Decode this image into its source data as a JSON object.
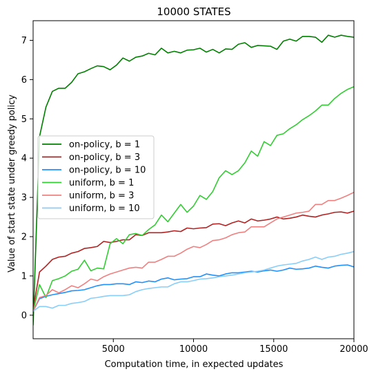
{
  "chart_data": {
    "type": "line",
    "title": "10000 STATES",
    "xlabel": "Computation time, in expected updates",
    "ylabel": "Value of start state under greedy policy",
    "xlim": [
      0,
      20000
    ],
    "ylim": [
      -0.6,
      7.5
    ],
    "xticks": [
      5000,
      10000,
      15000,
      20000
    ],
    "yticks": [
      0,
      1,
      2,
      3,
      4,
      5,
      6,
      7
    ],
    "grid": false,
    "legend_position": "center-left",
    "series": [
      {
        "name": "on-policy, b = 1",
        "color": "#008000",
        "x": [
          0,
          400,
          800,
          1200,
          1600,
          2000,
          2400,
          2800,
          3200,
          3600,
          4000,
          4400,
          4800,
          5200,
          5600,
          6000,
          6400,
          6800,
          7200,
          7600,
          8000,
          8400,
          8800,
          9200,
          9600,
          10000,
          10400,
          10800,
          11200,
          11600,
          12000,
          12400,
          12800,
          13200,
          13600,
          14000,
          14400,
          14800,
          15200,
          15600,
          16000,
          16400,
          16800,
          17200,
          17600,
          18000,
          18400,
          18800,
          19200,
          19600,
          20000
        ],
        "values": [
          -0.25,
          4.55,
          5.3,
          5.7,
          5.78,
          5.78,
          5.93,
          6.15,
          6.2,
          6.28,
          6.35,
          6.33,
          6.25,
          6.37,
          6.55,
          6.47,
          6.57,
          6.6,
          6.67,
          6.63,
          6.8,
          6.68,
          6.72,
          6.68,
          6.75,
          6.76,
          6.8,
          6.7,
          6.77,
          6.68,
          6.78,
          6.77,
          6.9,
          6.94,
          6.82,
          6.87,
          6.86,
          6.85,
          6.77,
          6.98,
          7.03,
          6.98,
          7.1,
          7.1,
          7.08,
          6.95,
          7.13,
          7.08,
          7.13,
          7.1,
          7.08
        ]
      },
      {
        "name": "on-policy, b = 3",
        "color": "#B22222",
        "x": [
          0,
          400,
          800,
          1200,
          1600,
          2000,
          2400,
          2800,
          3200,
          3600,
          4000,
          4400,
          4800,
          5200,
          5600,
          6000,
          6400,
          6800,
          7200,
          7600,
          8000,
          8400,
          8800,
          9200,
          9600,
          10000,
          10400,
          10800,
          11200,
          11600,
          12000,
          12400,
          12800,
          13200,
          13600,
          14000,
          14400,
          14800,
          15200,
          15600,
          16000,
          16400,
          16800,
          17200,
          17600,
          18000,
          18400,
          18800,
          19200,
          19600,
          20000
        ],
        "values": [
          0.15,
          1.1,
          1.25,
          1.42,
          1.48,
          1.5,
          1.58,
          1.62,
          1.7,
          1.72,
          1.75,
          1.88,
          1.85,
          1.88,
          1.92,
          1.92,
          2.05,
          2.03,
          2.1,
          2.1,
          2.1,
          2.12,
          2.15,
          2.13,
          2.22,
          2.2,
          2.22,
          2.23,
          2.32,
          2.33,
          2.28,
          2.35,
          2.4,
          2.35,
          2.45,
          2.4,
          2.42,
          2.45,
          2.5,
          2.45,
          2.47,
          2.5,
          2.55,
          2.52,
          2.5,
          2.55,
          2.58,
          2.62,
          2.63,
          2.6,
          2.65
        ]
      },
      {
        "name": "on-policy, b = 10",
        "color": "#1E90FF",
        "x": [
          0,
          400,
          800,
          1200,
          1600,
          2000,
          2400,
          2800,
          3200,
          3600,
          4000,
          4400,
          4800,
          5200,
          5600,
          6000,
          6400,
          6800,
          7200,
          7600,
          8000,
          8400,
          8800,
          9200,
          9600,
          10000,
          10400,
          10800,
          11200,
          11600,
          12000,
          12400,
          12800,
          13200,
          13600,
          14000,
          14400,
          14800,
          15200,
          15600,
          16000,
          16400,
          16800,
          17200,
          17600,
          18000,
          18400,
          18800,
          19200,
          19600,
          20000
        ],
        "values": [
          0.1,
          0.42,
          0.48,
          0.52,
          0.55,
          0.58,
          0.62,
          0.63,
          0.65,
          0.7,
          0.75,
          0.78,
          0.78,
          0.8,
          0.8,
          0.78,
          0.85,
          0.83,
          0.87,
          0.85,
          0.92,
          0.95,
          0.9,
          0.92,
          0.93,
          0.98,
          0.98,
          1.05,
          1.02,
          1.0,
          1.05,
          1.08,
          1.08,
          1.1,
          1.12,
          1.1,
          1.13,
          1.15,
          1.12,
          1.15,
          1.2,
          1.17,
          1.18,
          1.2,
          1.25,
          1.22,
          1.2,
          1.25,
          1.27,
          1.28,
          1.23
        ]
      },
      {
        "name": "uniform, b = 1",
        "color": "#32CD32",
        "x": [
          0,
          400,
          800,
          1200,
          1600,
          2000,
          2400,
          2800,
          3200,
          3600,
          4000,
          4400,
          4800,
          5200,
          5600,
          6000,
          6400,
          6800,
          7200,
          7600,
          8000,
          8400,
          8800,
          9200,
          9600,
          10000,
          10400,
          10800,
          11200,
          11600,
          12000,
          12400,
          12800,
          13200,
          13600,
          14000,
          14400,
          14800,
          15200,
          15600,
          16000,
          16400,
          16800,
          17200,
          17600,
          18000,
          18400,
          18800,
          19200,
          19600,
          20000
        ],
        "values": [
          0.1,
          0.78,
          0.45,
          0.88,
          0.93,
          1.0,
          1.12,
          1.17,
          1.4,
          1.13,
          1.2,
          1.18,
          1.82,
          1.95,
          1.82,
          2.05,
          2.08,
          2.03,
          2.18,
          2.3,
          2.55,
          2.38,
          2.6,
          2.82,
          2.62,
          2.78,
          3.05,
          2.95,
          3.15,
          3.5,
          3.68,
          3.58,
          3.68,
          3.88,
          4.18,
          4.05,
          4.42,
          4.32,
          4.58,
          4.62,
          4.75,
          4.85,
          4.98,
          5.08,
          5.2,
          5.35,
          5.35,
          5.52,
          5.65,
          5.75,
          5.82
        ]
      },
      {
        "name": "uniform, b = 3",
        "color": "#F08080",
        "x": [
          0,
          400,
          800,
          1200,
          1600,
          2000,
          2400,
          2800,
          3200,
          3600,
          4000,
          4400,
          4800,
          5200,
          5600,
          6000,
          6400,
          6800,
          7200,
          7600,
          8000,
          8400,
          8800,
          9200,
          9600,
          10000,
          10400,
          10800,
          11200,
          11600,
          12000,
          12400,
          12800,
          13200,
          13600,
          14000,
          14400,
          14800,
          15200,
          15600,
          16000,
          16400,
          16800,
          17200,
          17600,
          18000,
          18400,
          18800,
          19200,
          19600,
          20000
        ],
        "values": [
          0.1,
          0.45,
          0.5,
          0.65,
          0.57,
          0.65,
          0.75,
          0.7,
          0.8,
          0.92,
          0.88,
          0.98,
          1.05,
          1.1,
          1.15,
          1.2,
          1.22,
          1.2,
          1.35,
          1.35,
          1.42,
          1.5,
          1.5,
          1.58,
          1.68,
          1.75,
          1.72,
          1.8,
          1.9,
          1.92,
          1.97,
          2.05,
          2.1,
          2.12,
          2.25,
          2.25,
          2.25,
          2.35,
          2.45,
          2.5,
          2.55,
          2.6,
          2.62,
          2.65,
          2.82,
          2.82,
          2.92,
          2.92,
          2.98,
          3.05,
          3.13
        ]
      },
      {
        "name": "uniform, b = 10",
        "color": "#87CEFA",
        "x": [
          0,
          400,
          800,
          1200,
          1600,
          2000,
          2400,
          2800,
          3200,
          3600,
          4000,
          4400,
          4800,
          5200,
          5600,
          6000,
          6400,
          6800,
          7200,
          7600,
          8000,
          8400,
          8800,
          9200,
          9600,
          10000,
          10400,
          10800,
          11200,
          11600,
          12000,
          12400,
          12800,
          13200,
          13600,
          14000,
          14400,
          14800,
          15200,
          15600,
          16000,
          16400,
          16800,
          17200,
          17600,
          18000,
          18400,
          18800,
          19200,
          19600,
          20000
        ],
        "values": [
          0.1,
          0.22,
          0.22,
          0.18,
          0.25,
          0.25,
          0.3,
          0.32,
          0.35,
          0.43,
          0.45,
          0.48,
          0.5,
          0.5,
          0.5,
          0.52,
          0.6,
          0.65,
          0.68,
          0.7,
          0.72,
          0.72,
          0.8,
          0.85,
          0.85,
          0.88,
          0.92,
          0.93,
          0.95,
          0.98,
          1.0,
          1.02,
          1.05,
          1.08,
          1.1,
          1.12,
          1.15,
          1.2,
          1.25,
          1.28,
          1.3,
          1.32,
          1.38,
          1.42,
          1.48,
          1.42,
          1.48,
          1.5,
          1.55,
          1.58,
          1.62
        ]
      }
    ]
  }
}
